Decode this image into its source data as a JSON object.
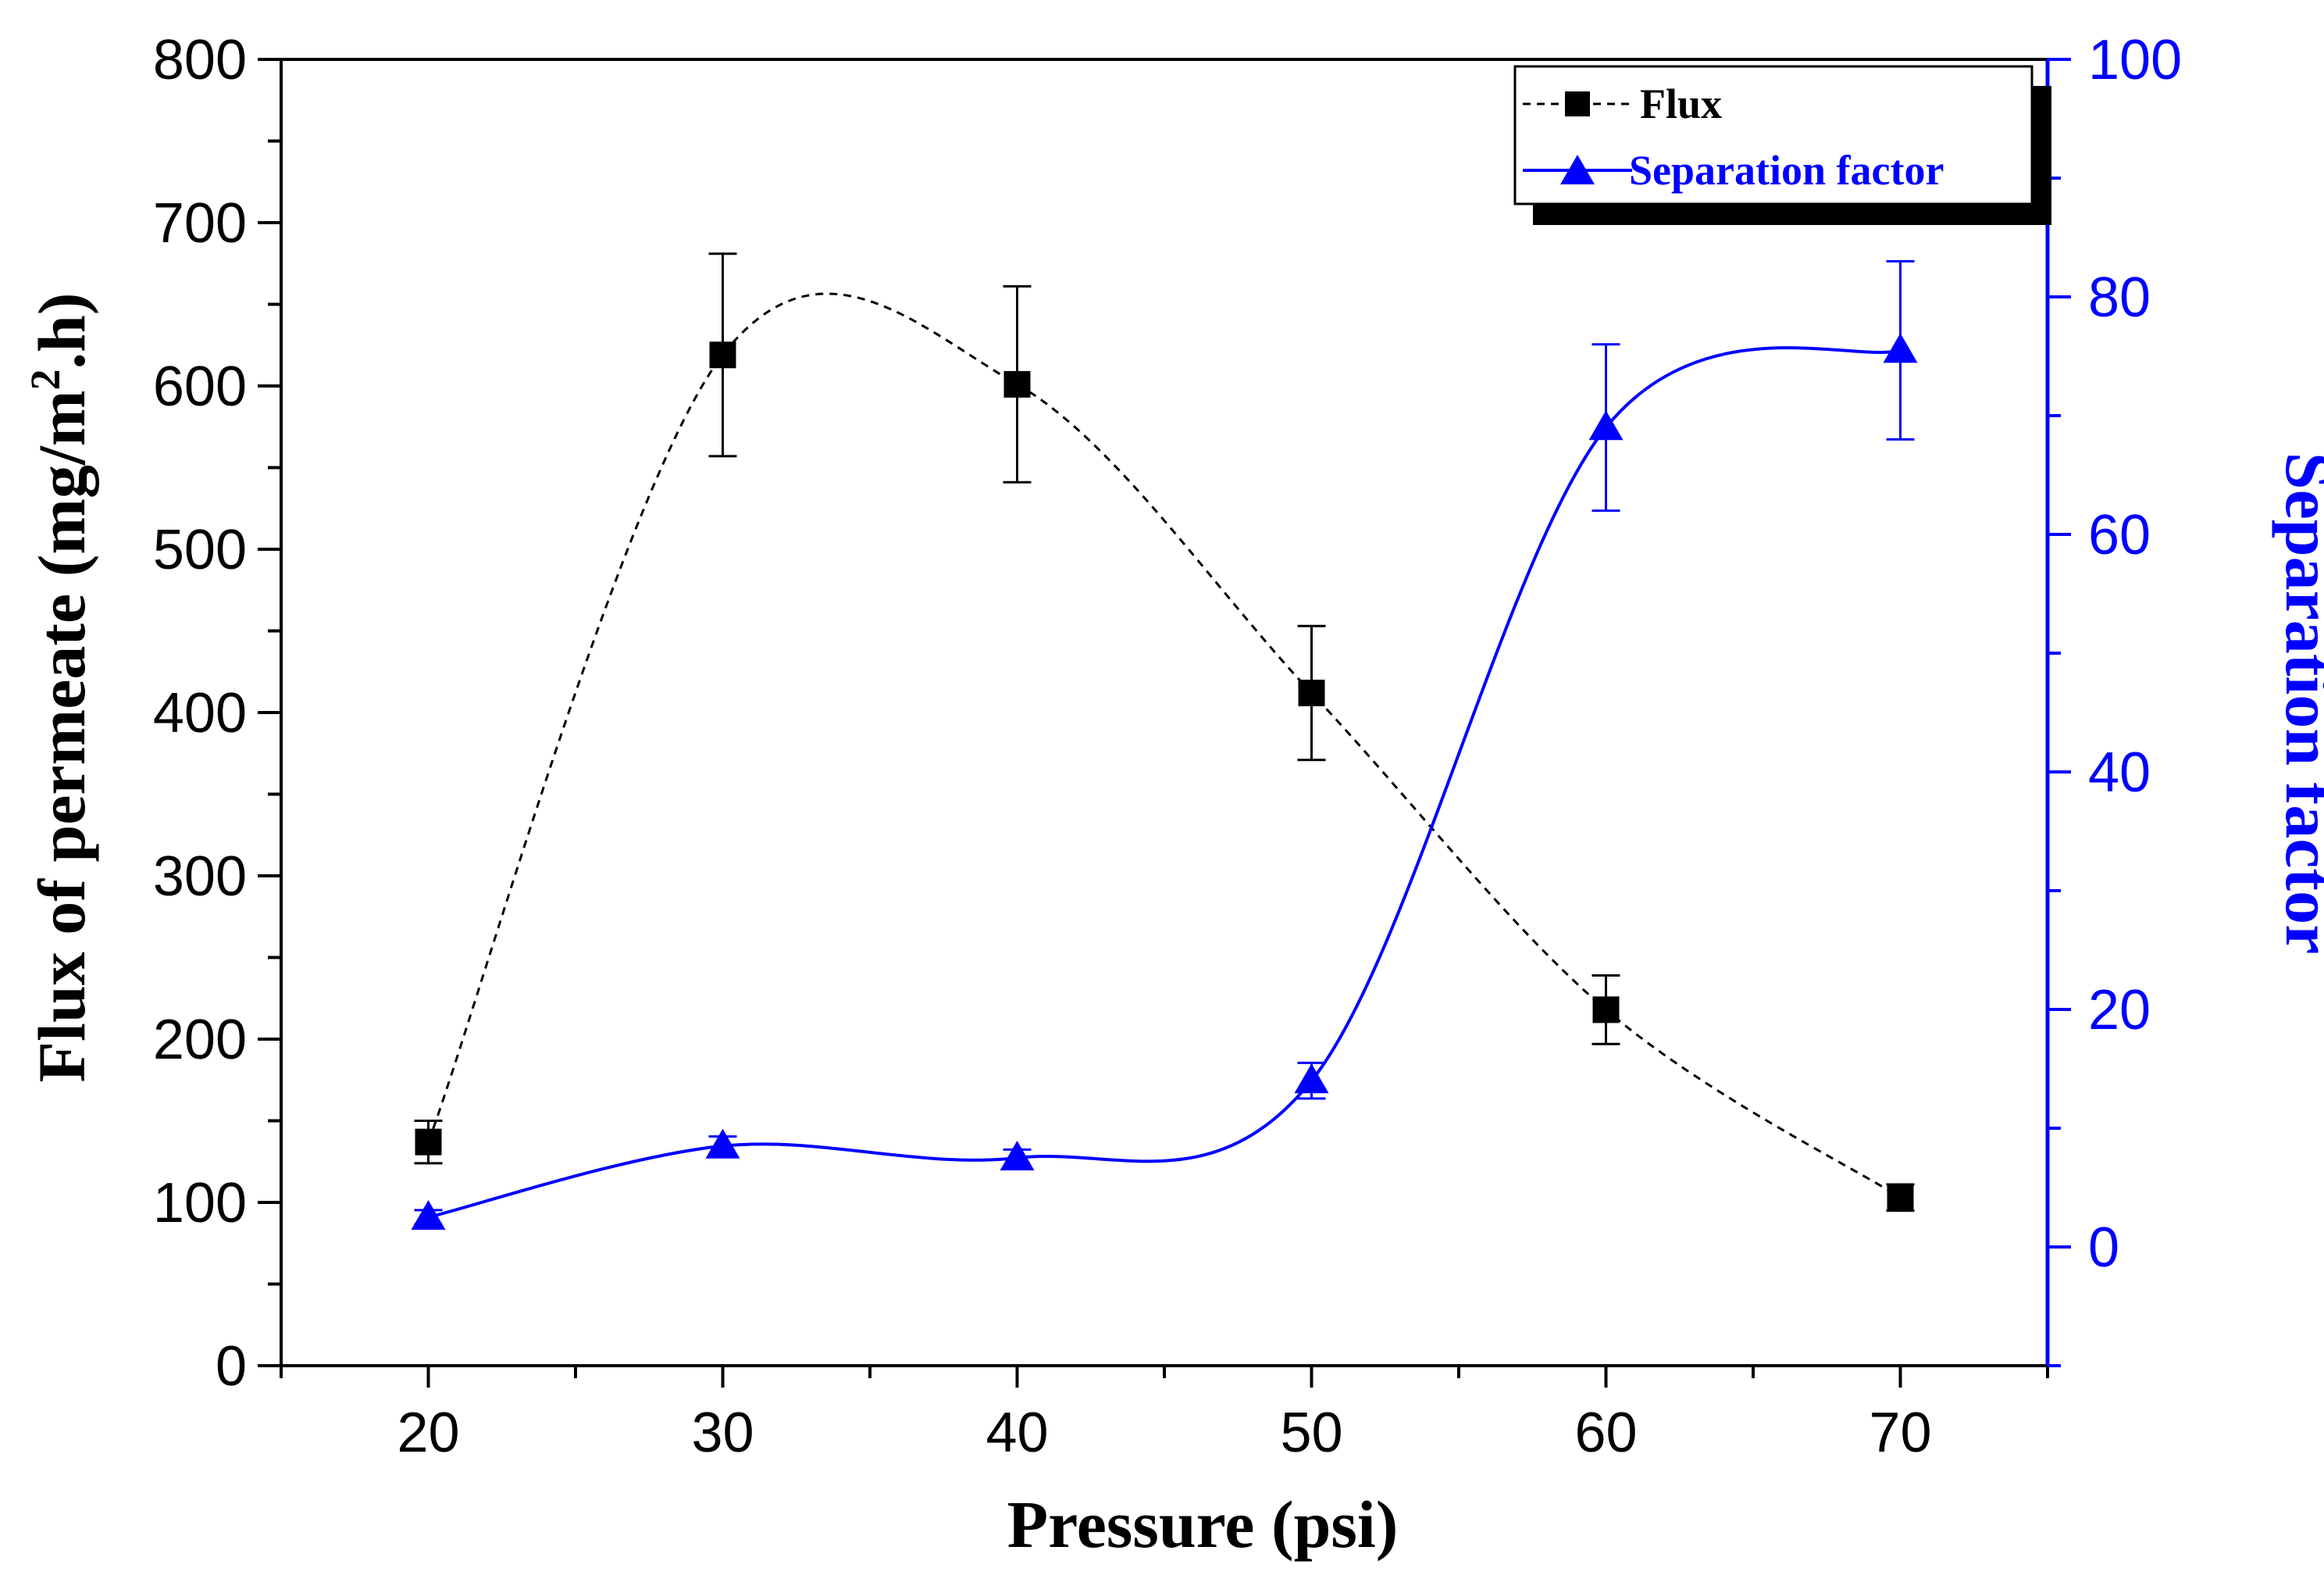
{
  "chart_data": {
    "type": "line",
    "x": [
      20,
      30,
      40,
      50,
      60,
      70
    ],
    "xlabel": "Pressure (psi)",
    "xlim": [
      15,
      75
    ],
    "xticks": [
      "20",
      "30",
      "40",
      "50",
      "60",
      "70"
    ],
    "y_left": {
      "label_main": "Flux of permeate (mg/m",
      "label_sup": "2",
      "label_tail": ".h)",
      "lim": [
        0,
        800
      ],
      "ticks": [
        "0",
        "100",
        "200",
        "300",
        "400",
        "500",
        "600",
        "700",
        "800"
      ],
      "color": "#000000"
    },
    "y_right": {
      "label": "Separation factor",
      "lim": [
        -10,
        100
      ],
      "ticks": [
        "0",
        "20",
        "40",
        "60",
        "80",
        "100"
      ],
      "color": "#0000ff"
    },
    "series": [
      {
        "name": "Flux",
        "axis": "left",
        "marker": "square",
        "line": "dashed spline",
        "color": "#000000",
        "values": [
          137,
          619,
          601,
          412,
          218,
          103
        ],
        "errors": [
          13,
          62,
          60,
          41,
          21,
          8
        ]
      },
      {
        "name": "Separation factor",
        "axis": "right",
        "marker": "triangle",
        "line": "solid spline",
        "color": "#0000ff",
        "values": [
          2.5,
          8.5,
          7.5,
          14,
          69,
          75.5
        ],
        "errors": [
          0.6,
          0.8,
          0.7,
          1.5,
          7,
          7.5
        ]
      }
    ],
    "legend": {
      "position": "top-right"
    }
  }
}
